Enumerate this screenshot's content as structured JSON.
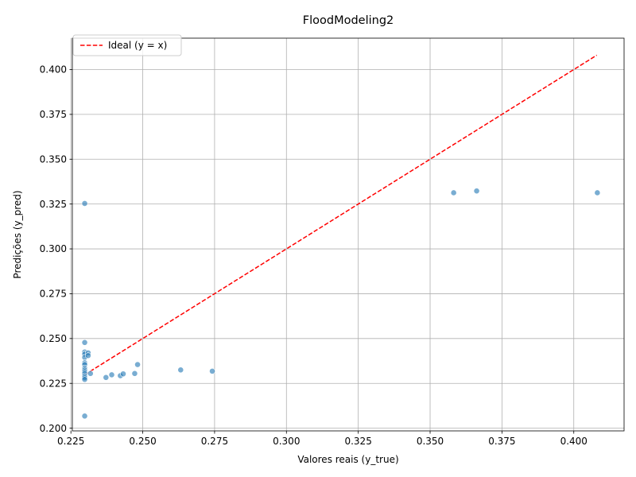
{
  "chart_data": {
    "type": "scatter",
    "title": "FloodModeling2",
    "xlabel": "Valores reais (y_true)",
    "ylabel": "Predições (y_pred)",
    "xlim": [
      0.2255,
      0.4175
    ],
    "ylim": [
      0.1985,
      0.4175
    ],
    "xticks": [
      "0.225",
      "0.250",
      "0.275",
      "0.300",
      "0.325",
      "0.350",
      "0.375",
      "0.400"
    ],
    "yticks": [
      "0.200",
      "0.225",
      "0.250",
      "0.275",
      "0.300",
      "0.325",
      "0.350",
      "0.375",
      "0.400"
    ],
    "grid": true,
    "legend_position": "upper-left",
    "legend_label": "Ideal (y = x)",
    "ideal_line": {
      "x": [
        0.2298,
        0.408
      ],
      "y": [
        0.2298,
        0.408
      ],
      "color": "#ff0000",
      "style": "dashed"
    },
    "points_color": "#1f77b4",
    "points": [
      [
        0.2298,
        0.3253
      ],
      [
        0.2298,
        0.2478
      ],
      [
        0.2298,
        0.2425
      ],
      [
        0.2298,
        0.2413
      ],
      [
        0.2298,
        0.2395
      ],
      [
        0.2298,
        0.2365
      ],
      [
        0.2298,
        0.2355
      ],
      [
        0.2298,
        0.2335
      ],
      [
        0.2298,
        0.2325
      ],
      [
        0.2298,
        0.2315
      ],
      [
        0.2298,
        0.2305
      ],
      [
        0.2298,
        0.2292
      ],
      [
        0.2298,
        0.2282
      ],
      [
        0.2298,
        0.2272
      ],
      [
        0.2298,
        0.2068
      ],
      [
        0.231,
        0.242
      ],
      [
        0.231,
        0.2405
      ],
      [
        0.2318,
        0.2305
      ],
      [
        0.2372,
        0.2283
      ],
      [
        0.2392,
        0.2298
      ],
      [
        0.2422,
        0.2293
      ],
      [
        0.2432,
        0.2303
      ],
      [
        0.2472,
        0.2305
      ],
      [
        0.2482,
        0.2355
      ],
      [
        0.2632,
        0.2325
      ],
      [
        0.2742,
        0.2318
      ],
      [
        0.3582,
        0.3313
      ],
      [
        0.3662,
        0.3323
      ],
      [
        0.4082,
        0.3313
      ]
    ]
  }
}
